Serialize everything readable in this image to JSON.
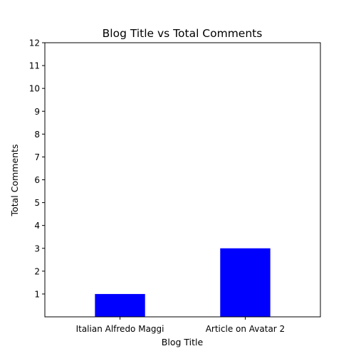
{
  "chart_data": {
    "type": "bar",
    "title": "Blog Title vs Total Comments",
    "xlabel": "Blog Title",
    "ylabel": "Total Comments",
    "categories": [
      "Italian Alfredo Maggi",
      "Article on Avatar 2"
    ],
    "values": [
      1,
      3
    ],
    "ylim": [
      0,
      12
    ],
    "yticks": [
      1,
      2,
      3,
      4,
      5,
      6,
      7,
      8,
      9,
      10,
      11,
      12
    ],
    "bar_color": "#0000ff",
    "grid": false,
    "legend": "none"
  }
}
